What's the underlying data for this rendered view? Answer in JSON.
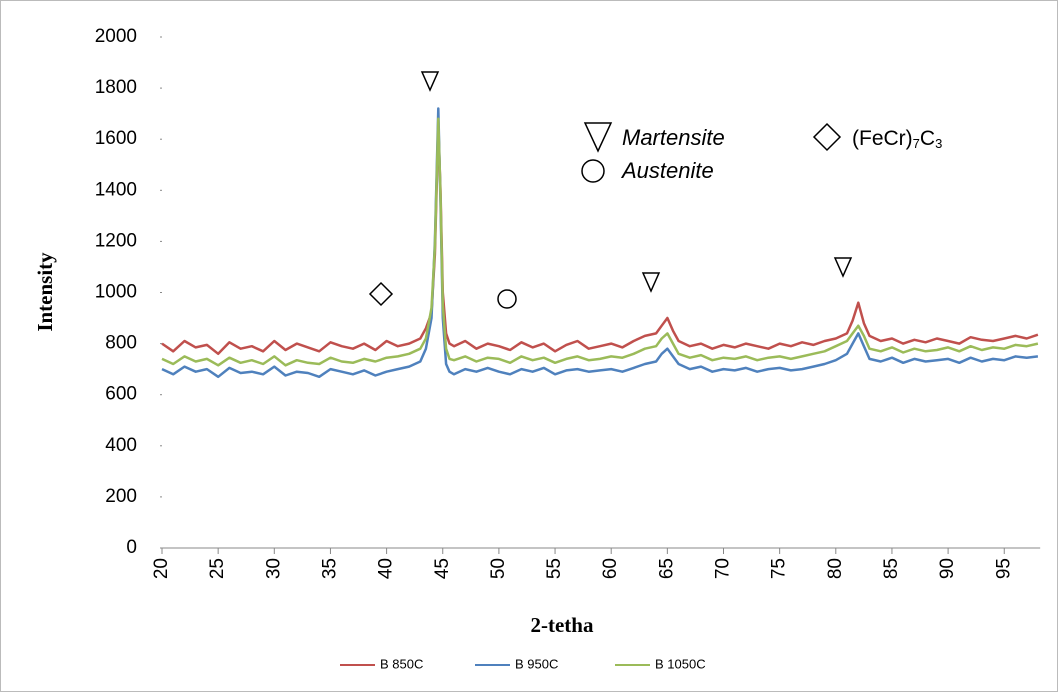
{
  "chart_data": {
    "type": "line",
    "x_label": "2-tetha",
    "y_label": "Intensity",
    "annotations": {
      "martensite": "Martensite",
      "austenite": "Austenite",
      "carbide": [
        "(FeCr)",
        "7",
        "C",
        "3"
      ]
    },
    "x": [
      20,
      21,
      22,
      23,
      24,
      25,
      26,
      27,
      28,
      29,
      30,
      31,
      32,
      33,
      34,
      35,
      36,
      37,
      38,
      39,
      40,
      41,
      42,
      43,
      43.5,
      44,
      44.3,
      44.6,
      44.8,
      45,
      45.3,
      45.6,
      46,
      47,
      48,
      49,
      50,
      51,
      52,
      53,
      54,
      55,
      56,
      57,
      58,
      59,
      60,
      61,
      62,
      63,
      64,
      64.5,
      65,
      65.5,
      66,
      67,
      68,
      69,
      70,
      71,
      72,
      73,
      74,
      75,
      76,
      77,
      78,
      79,
      80,
      81,
      81.5,
      82,
      82.5,
      83,
      84,
      85,
      86,
      87,
      88,
      89,
      90,
      91,
      92,
      93,
      94,
      95,
      96,
      97,
      98
    ],
    "series": [
      {
        "name": "B 850C",
        "color": "#c0504d",
        "values": [
          800,
          770,
          810,
          785,
          795,
          760,
          805,
          780,
          790,
          770,
          810,
          775,
          800,
          785,
          770,
          805,
          790,
          780,
          800,
          775,
          810,
          790,
          800,
          820,
          860,
          920,
          1150,
          1650,
          1400,
          1000,
          840,
          800,
          790,
          810,
          780,
          800,
          790,
          775,
          805,
          785,
          800,
          770,
          795,
          810,
          780,
          790,
          800,
          785,
          810,
          830,
          840,
          870,
          900,
          850,
          810,
          790,
          800,
          780,
          795,
          785,
          800,
          790,
          780,
          800,
          790,
          805,
          795,
          810,
          820,
          840,
          890,
          960,
          880,
          830,
          810,
          820,
          800,
          815,
          805,
          820,
          810,
          800,
          825,
          815,
          810,
          820,
          830,
          820,
          835
        ]
      },
      {
        "name": "B 950C",
        "color": "#4f81bd",
        "values": [
          700,
          680,
          710,
          690,
          700,
          670,
          705,
          685,
          690,
          680,
          710,
          675,
          690,
          685,
          670,
          700,
          690,
          680,
          695,
          675,
          690,
          700,
          710,
          730,
          780,
          900,
          1200,
          1720,
          1350,
          900,
          720,
          690,
          680,
          700,
          690,
          705,
          690,
          680,
          700,
          690,
          705,
          680,
          695,
          700,
          690,
          695,
          700,
          690,
          705,
          720,
          730,
          760,
          780,
          750,
          720,
          700,
          710,
          690,
          700,
          695,
          705,
          690,
          700,
          705,
          695,
          700,
          710,
          720,
          735,
          760,
          800,
          840,
          790,
          740,
          730,
          745,
          725,
          740,
          730,
          735,
          740,
          725,
          745,
          730,
          740,
          735,
          750,
          745,
          750
        ]
      },
      {
        "name": "B 1050C",
        "color": "#9bbb59",
        "values": [
          740,
          720,
          750,
          730,
          740,
          715,
          745,
          725,
          735,
          720,
          750,
          715,
          735,
          725,
          720,
          745,
          730,
          725,
          740,
          730,
          745,
          750,
          760,
          780,
          820,
          940,
          1180,
          1680,
          1380,
          950,
          780,
          740,
          735,
          750,
          730,
          745,
          740,
          725,
          750,
          735,
          745,
          725,
          740,
          750,
          735,
          740,
          750,
          745,
          760,
          780,
          790,
          820,
          840,
          800,
          760,
          745,
          755,
          735,
          745,
          740,
          750,
          735,
          745,
          750,
          740,
          750,
          760,
          770,
          790,
          810,
          840,
          870,
          830,
          780,
          770,
          785,
          765,
          780,
          770,
          775,
          785,
          770,
          790,
          775,
          785,
          780,
          795,
          790,
          800
        ]
      }
    ],
    "xlim": [
      20,
      98.2
    ],
    "ylim": [
      0,
      2000
    ],
    "xticks": [
      20,
      25,
      30,
      35,
      40,
      45,
      50,
      55,
      60,
      65,
      70,
      75,
      80,
      85,
      90,
      95
    ],
    "yticks": [
      0,
      200,
      400,
      600,
      800,
      1000,
      1200,
      1400,
      1600,
      1800,
      2000
    ],
    "grid": false
  }
}
